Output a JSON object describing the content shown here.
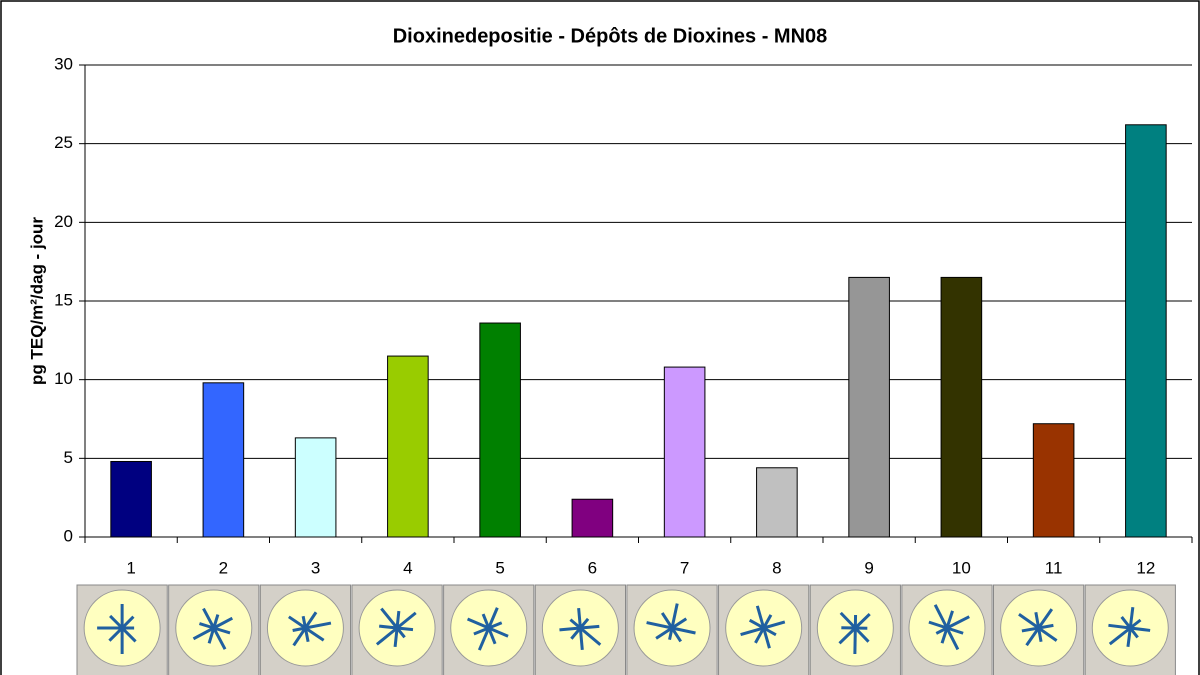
{
  "chart_data": {
    "type": "bar",
    "title": "Dioxinedepositie - Dépôts de Dioxines -  MN08",
    "y_label": "pg TEQ/m²/dag - jour",
    "categories": [
      "1",
      "2",
      "3",
      "4",
      "5",
      "6",
      "7",
      "8",
      "9",
      "10",
      "11",
      "12"
    ],
    "values": [
      4.8,
      9.8,
      6.3,
      11.5,
      13.6,
      2.4,
      10.8,
      4.4,
      16.5,
      16.5,
      7.2,
      26.2
    ],
    "colors": [
      "#000080",
      "#3366ff",
      "#ccffff",
      "#99cc00",
      "#008000",
      "#800080",
      "#cc99ff",
      "#c0c0c0",
      "#969696",
      "#333300",
      "#993300",
      "#008080"
    ],
    "ylim": [
      0,
      30
    ],
    "yticks": [
      0,
      5,
      10,
      15,
      20,
      25,
      30
    ],
    "grid": true
  }
}
